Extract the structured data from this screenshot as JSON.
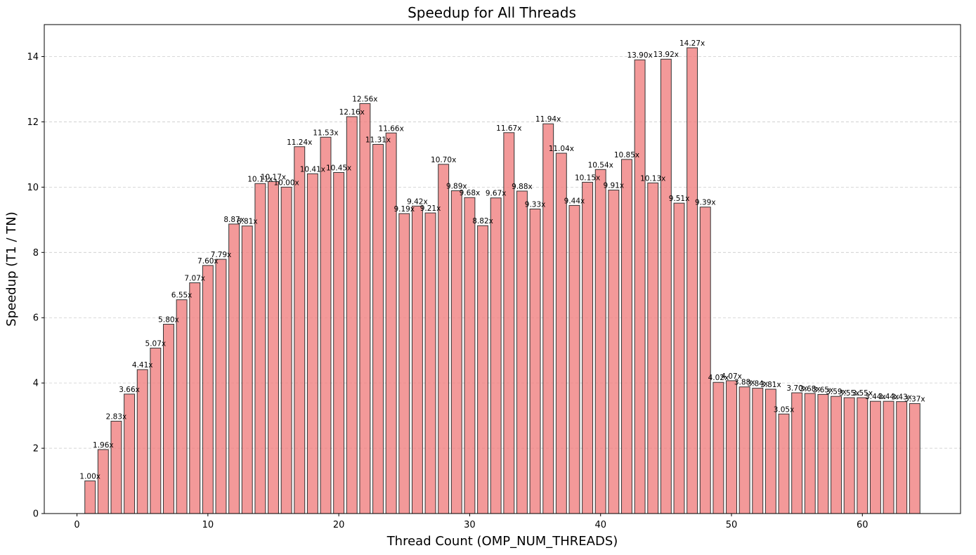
{
  "chart_data": {
    "type": "bar",
    "title": "Speedup for All Threads",
    "xlabel": "Thread Count (OMP_NUM_THREADS)",
    "ylabel": "Speedup (T1 / TN)",
    "xlim": [
      -2.5,
      67.5
    ],
    "ylim": [
      0,
      14.98
    ],
    "xticks": [
      0,
      10,
      20,
      30,
      40,
      50,
      60
    ],
    "yticks": [
      0,
      2,
      4,
      6,
      8,
      10,
      12,
      14
    ],
    "grid": "y, dashed",
    "bar_color": "#f08080",
    "bar_edge_color": "#333333",
    "label_suffix": "x",
    "x": [
      1,
      2,
      3,
      4,
      5,
      6,
      7,
      8,
      9,
      10,
      11,
      12,
      13,
      14,
      15,
      16,
      17,
      18,
      19,
      20,
      21,
      22,
      23,
      24,
      25,
      26,
      27,
      28,
      29,
      30,
      31,
      32,
      33,
      34,
      35,
      36,
      37,
      38,
      39,
      40,
      41,
      42,
      43,
      44,
      45,
      46,
      47,
      48,
      49,
      50,
      51,
      52,
      53,
      54,
      55,
      56,
      57,
      58,
      59,
      60,
      61,
      62,
      63,
      64
    ],
    "values": [
      1.0,
      1.96,
      2.83,
      3.66,
      4.41,
      5.07,
      5.8,
      6.55,
      7.07,
      7.6,
      7.79,
      8.87,
      8.81,
      10.11,
      10.17,
      10.0,
      11.24,
      10.41,
      11.53,
      10.45,
      12.16,
      12.56,
      11.31,
      11.66,
      9.19,
      9.42,
      9.21,
      10.7,
      9.89,
      9.68,
      8.82,
      9.67,
      11.67,
      9.88,
      9.33,
      11.94,
      11.04,
      9.44,
      10.15,
      10.54,
      9.91,
      10.85,
      13.9,
      10.13,
      13.92,
      9.51,
      14.27,
      9.39,
      4.02,
      4.07,
      3.88,
      3.84,
      3.81,
      3.05,
      3.7,
      3.68,
      3.65,
      3.59,
      3.55,
      3.55,
      3.44,
      3.44,
      3.43,
      3.37
    ],
    "labels": [
      "1.00x",
      "1.96x",
      "2.83x",
      "3.66x",
      "4.41x",
      "5.07x",
      "5.80x",
      "6.55x",
      "7.07x",
      "7.60x",
      "7.79x",
      "8.87x",
      "8.81x",
      "10.11x",
      "10.17x",
      "10.00x",
      "11.24x",
      "10.41x",
      "11.53x",
      "10.45x",
      "12.16x",
      "12.56x",
      "11.31x",
      "11.66x",
      "9.19x",
      "9.42x",
      "9.21x",
      "10.70x",
      "9.89x",
      "9.68x",
      "8.82x",
      "9.67x",
      "11.67x",
      "9.88x",
      "9.33x",
      "11.94x",
      "11.04x",
      "9.44x",
      "10.15x",
      "10.54x",
      "9.91x",
      "10.85x",
      "13.90x",
      "10.13x",
      "13.92x",
      "9.51x",
      "14.27x",
      "9.39x",
      "4.02x",
      "4.07x",
      "3.88x",
      "3.84x",
      "3.81x",
      "3.05x",
      "3.70x",
      "3.68x",
      "3.65x",
      "3.59x",
      "3.55x",
      "3.55x",
      "3.44x",
      "3.44x",
      "3.43x",
      "3.37x"
    ]
  }
}
